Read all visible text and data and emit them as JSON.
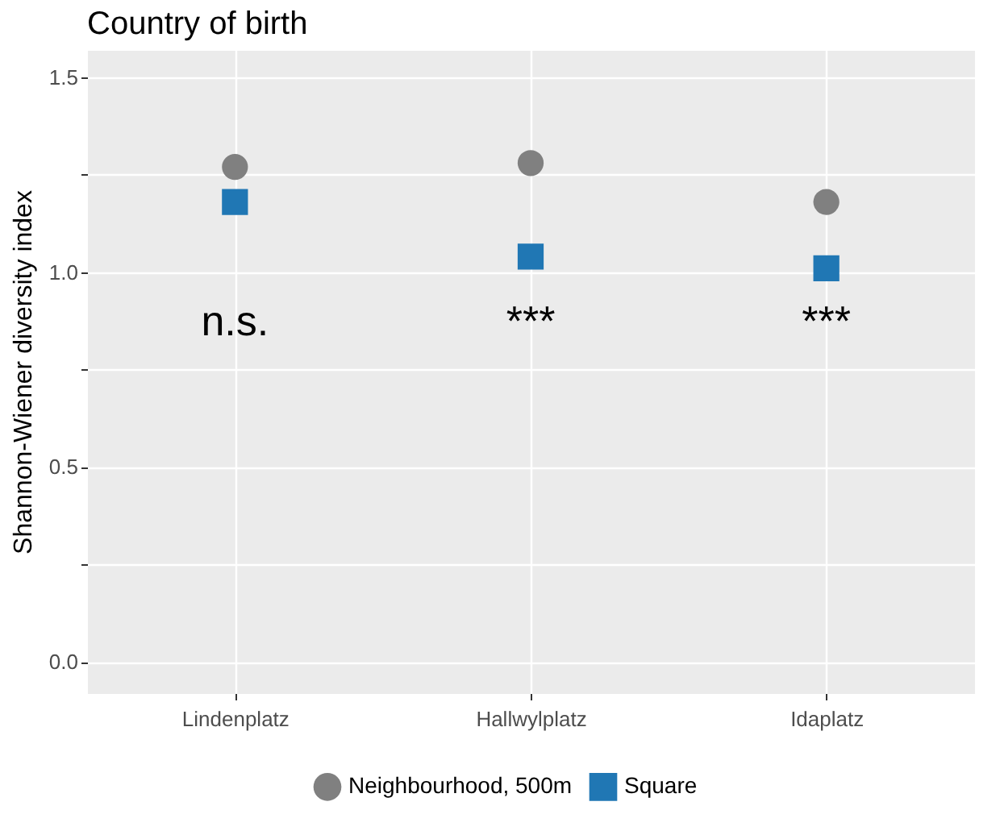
{
  "chart_data": {
    "type": "scatter",
    "title": "Country of birth",
    "ylabel": "Shannon-Wiener diversity index",
    "categories": [
      "Lindenplatz",
      "Hallwylplatz",
      "Idaplatz"
    ],
    "series": [
      {
        "name": "Neighbourhood, 500m",
        "color": "#808080",
        "marker": "circle",
        "values": [
          1.27,
          1.28,
          1.18
        ]
      },
      {
        "name": "Square",
        "color": "#2077b4",
        "marker": "square",
        "values": [
          1.18,
          1.04,
          1.01
        ]
      }
    ],
    "ylim": [
      -0.08,
      1.57
    ],
    "yticks": [
      {
        "value": 0,
        "label": "0.0"
      },
      {
        "value": 0.25,
        "label": null
      },
      0.5,
      {
        "value": 0.75,
        "label": null
      },
      {
        "value": 1,
        "label": "1.0"
      },
      {
        "value": 1.25,
        "label": null
      },
      1.5
    ],
    "grid": true,
    "legend": "bottom",
    "annotations": [
      "n.s.",
      "***",
      "***"
    ]
  }
}
